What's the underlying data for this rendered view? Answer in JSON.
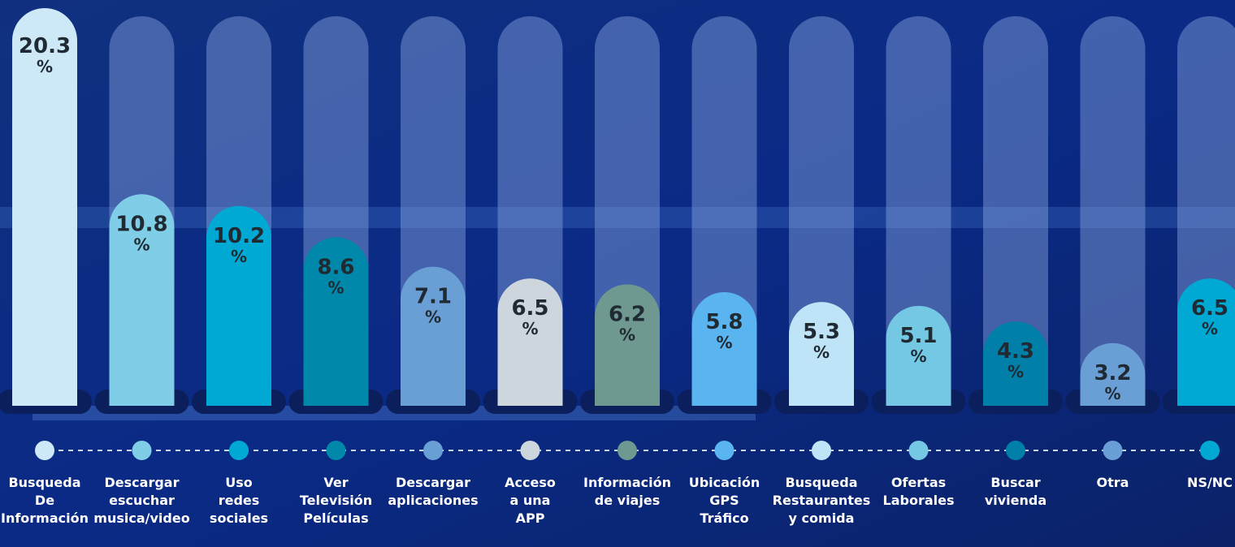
{
  "chart_data": {
    "type": "bar",
    "categories": [
      "Busqueda\nDe\nInformación",
      "Descargar\nescuchar\nmusica/video",
      "Uso\nredes\nsociales",
      "Ver\nTelevisión\nPelículas",
      "Descargar\naplicaciones",
      "Acceso\na una\nAPP",
      "Información\nde viajes",
      "Ubicación\nGPS\nTráfico",
      "Busqueda\nRestaurantes\ny comida",
      "Ofertas\nLaborales",
      "Buscar\nvivienda",
      "Otra",
      "NS/NC"
    ],
    "values": [
      20.3,
      10.8,
      10.2,
      8.6,
      7.1,
      6.5,
      6.2,
      5.8,
      5.3,
      5.1,
      4.3,
      3.2,
      6.5
    ],
    "unit": "%",
    "colors": [
      "#cde9f7",
      "#7fcde6",
      "#00a9d4",
      "#0088aa",
      "#6a9fd6",
      "#cdd6dc",
      "#6e9890",
      "#5ab4f0",
      "#bfe3f7",
      "#74c8e3",
      "#007fa8",
      "#6a9fd6",
      "#00a9d4"
    ],
    "ylim": [
      0,
      20.3
    ]
  }
}
